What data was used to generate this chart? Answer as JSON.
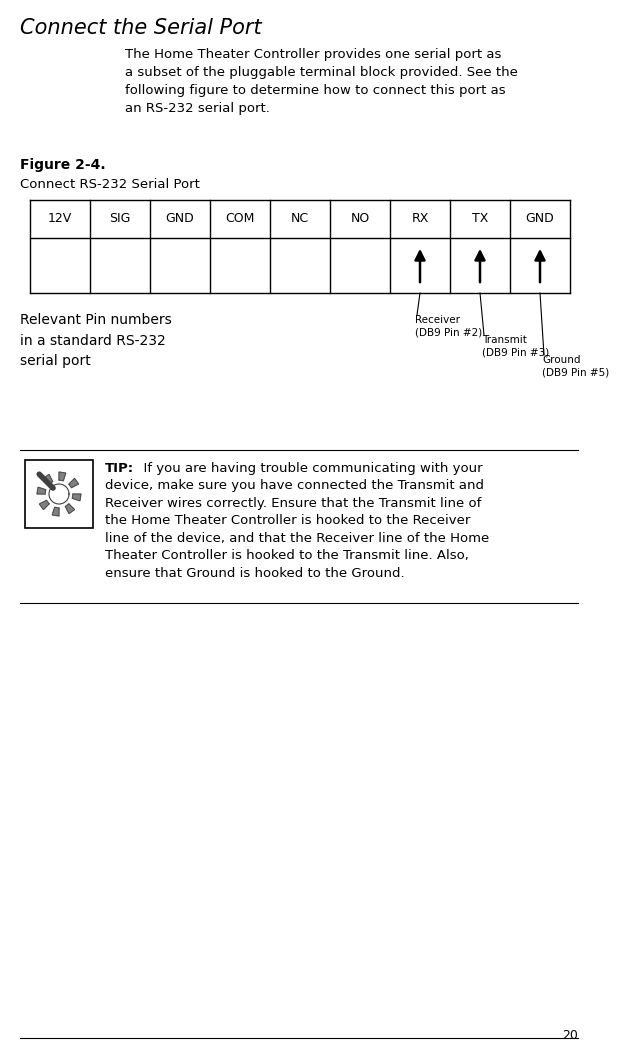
{
  "title": "Connect the Serial Port",
  "body_text": "The Home Theater Controller provides one serial port as\na subset of the pluggable terminal block provided. See the\nfollowing figure to determine how to connect this port as\nan RS-232 serial port.",
  "figure_label": "Figure 2-4.",
  "figure_caption": "Connect RS-232 Serial Port",
  "table_headers": [
    "12V",
    "SIG",
    "GND",
    "COM",
    "NC",
    "NO",
    "RX",
    "TX",
    "GND"
  ],
  "relevant_pin_text": "Relevant Pin numbers\nin a standard RS-232\nserial port",
  "arrow_col_indices": [
    6,
    7,
    8
  ],
  "arrow_label_texts": [
    "Receiver\n(DB9 Pin #2)",
    "Transmit\n(DB9 Pin #3)",
    "Ground\n(DB9 Pin #5)"
  ],
  "tip_bold": "TIP:",
  "tip_lines": [
    "  If you are having trouble communicating with your",
    "device, make sure you have connected the Transmit and",
    "Receiver wires correctly. Ensure that the Transmit line of",
    "the Home Theater Controller is hooked to the Receiver",
    "line of the device, and that the Receiver line of the Home",
    "Theater Controller is hooked to the Transmit line. Also,",
    "ensure that Ground is hooked to the Ground."
  ],
  "page_number": "20",
  "bg_color": "#ffffff",
  "text_color": "#000000",
  "line_color": "#000000"
}
